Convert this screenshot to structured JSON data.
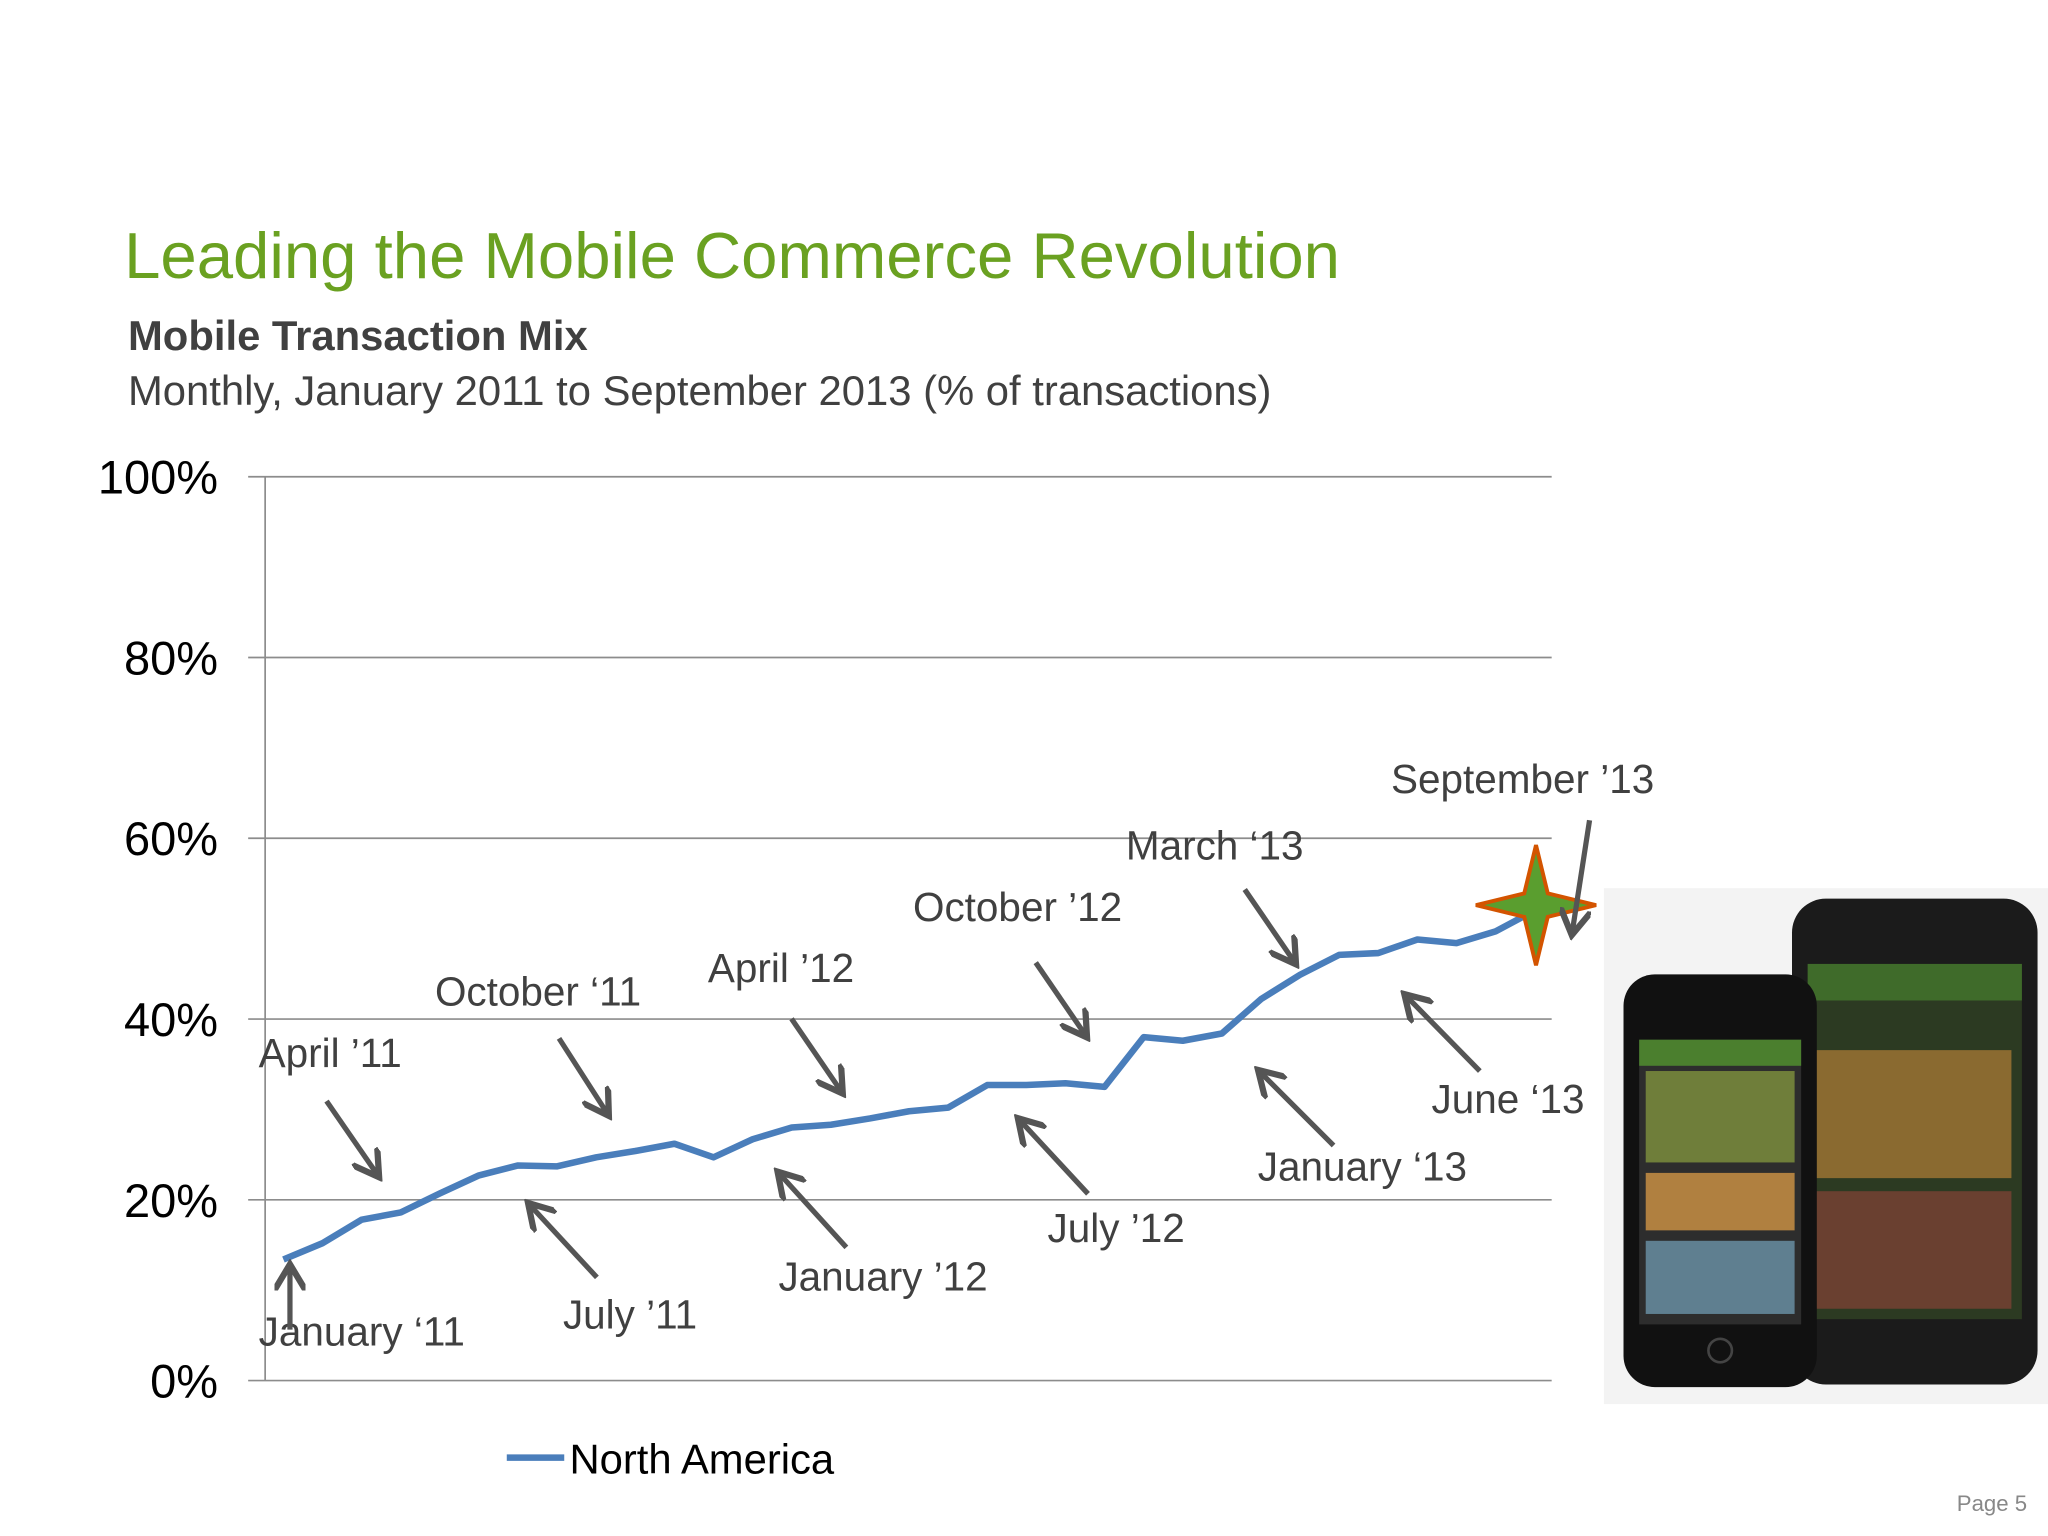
{
  "title": "Leading the Mobile Commerce Revolution",
  "page_label": "Page 5",
  "chart_data": {
    "type": "line",
    "title": "Mobile Transaction Mix",
    "subtitle": "Monthly, January 2011 to September 2013 (% of transactions)",
    "categories": [
      null,
      null,
      null,
      null,
      null,
      null,
      null,
      null,
      null,
      null,
      null,
      null,
      null,
      null,
      null,
      null,
      null,
      null,
      null,
      null,
      null,
      null,
      null,
      null,
      null,
      null,
      null,
      null,
      null,
      null,
      null,
      null,
      null
    ],
    "series": [
      {
        "name": "North America",
        "color": "#4a7ebb",
        "values": [
          13.4,
          15.2,
          17.8,
          18.6,
          20.7,
          22.7,
          23.8,
          23.7,
          24.7,
          25.4,
          26.2,
          24.7,
          26.7,
          28.0,
          28.3,
          29.0,
          29.8,
          30.2,
          32.7,
          32.7,
          32.9,
          32.5,
          38.0,
          37.6,
          38.4,
          42.2,
          44.9,
          47.1,
          47.3,
          48.8,
          48.4,
          49.7,
          52.0
        ]
      }
    ],
    "ylim": [
      0,
      100
    ],
    "yticks": [
      {
        "value": 0,
        "label": "0%"
      },
      {
        "value": 20,
        "label": "20%"
      },
      {
        "value": 40,
        "label": "40%"
      },
      {
        "value": 60,
        "label": "60%"
      },
      {
        "value": 80,
        "label": "80%"
      },
      {
        "value": 100,
        "label": "100%"
      }
    ],
    "grid": true,
    "legend": "bottom",
    "annotations": [
      "January ‘11",
      "April ’11",
      "October ‘11",
      "July ’11",
      "April ’12",
      "January  ’12",
      "October ’12",
      "July ’12",
      "March ‘13",
      "January ‘13",
      "June ‘13",
      "September ’13"
    ]
  }
}
